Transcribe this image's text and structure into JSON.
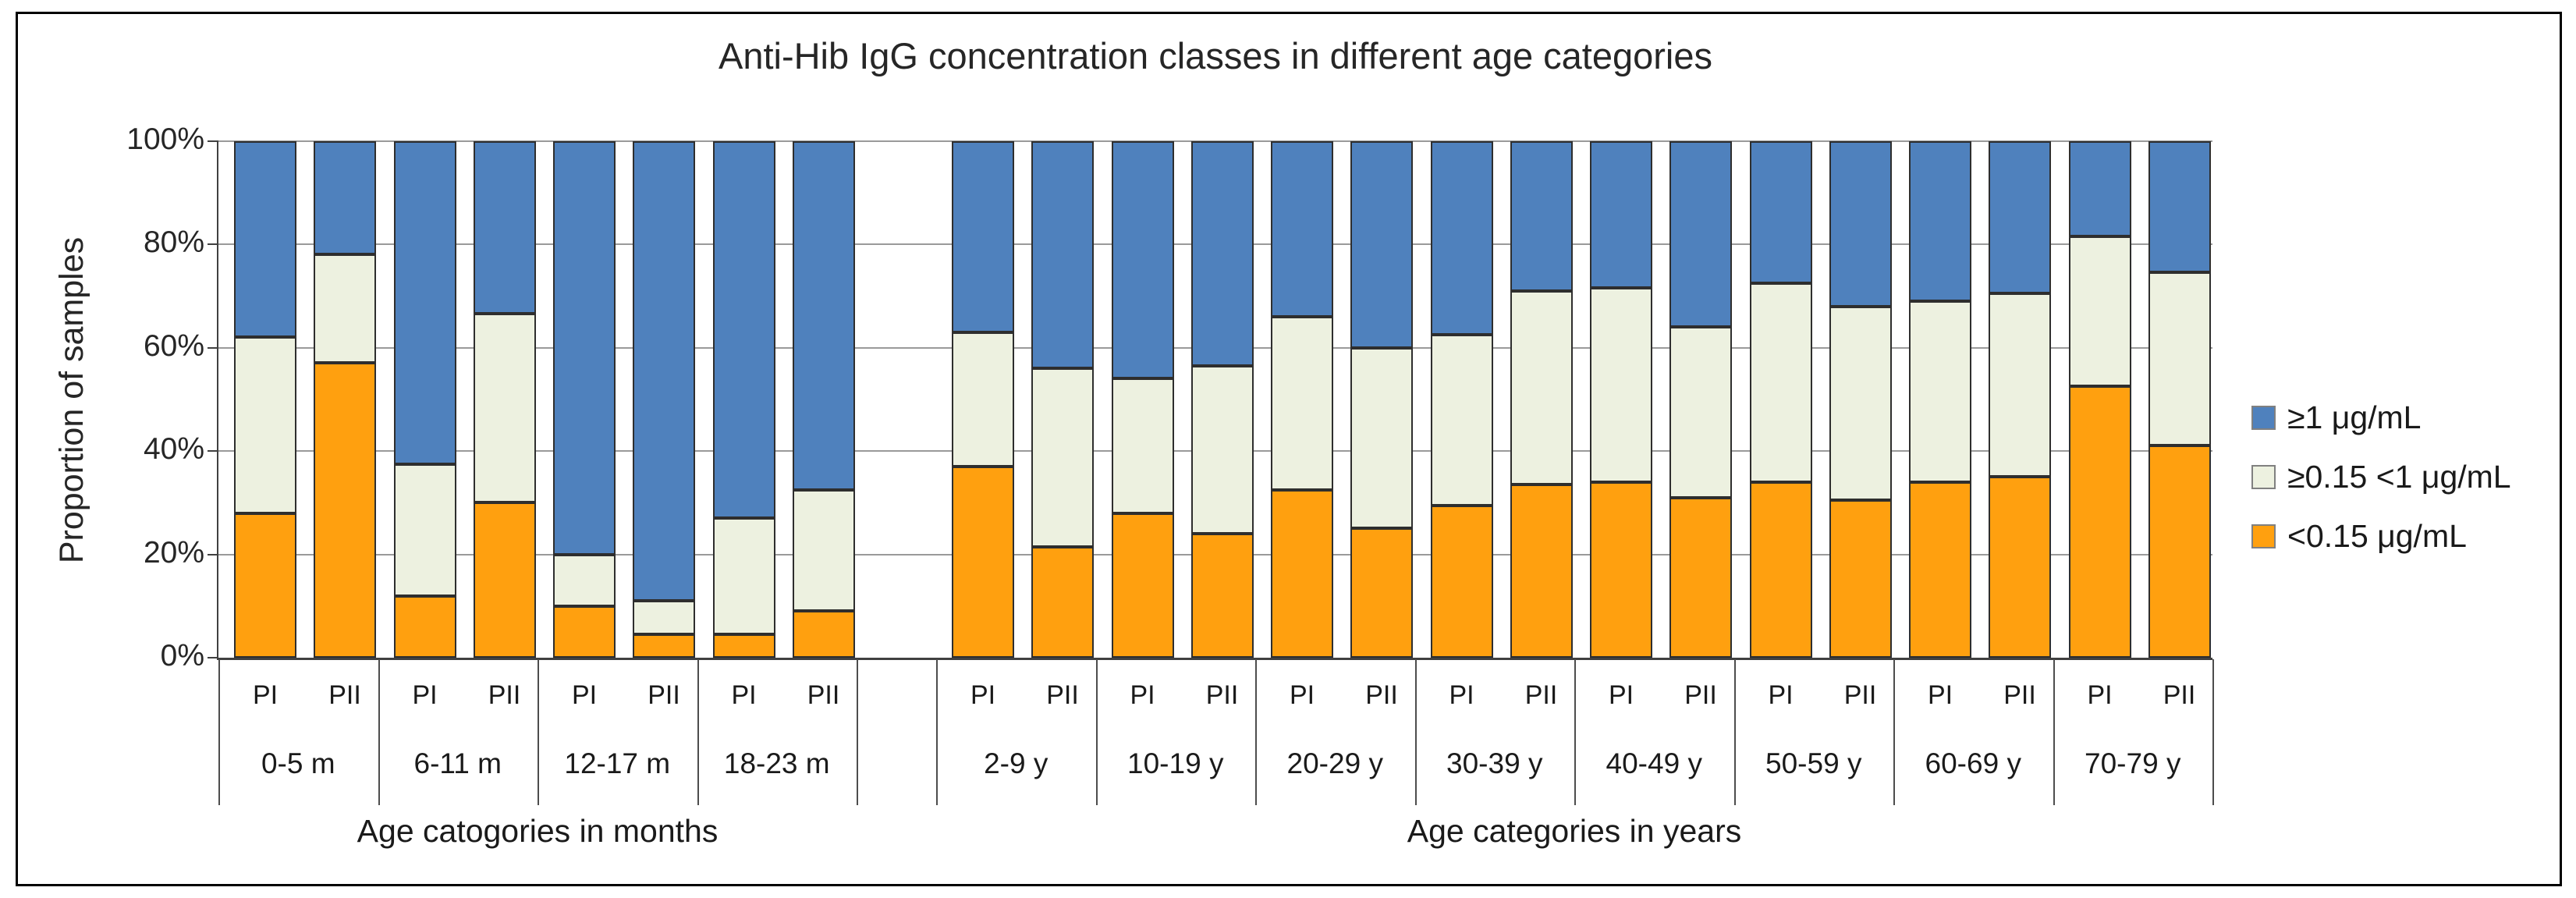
{
  "title": "Anti-Hib IgG concentration classes in different age categories",
  "y_axis": {
    "title": "Proportion of samples",
    "ticks": [
      {
        "value": 0,
        "label": "0%"
      },
      {
        "value": 20,
        "label": "20%"
      },
      {
        "value": 40,
        "label": "40%"
      },
      {
        "value": 60,
        "label": "60%"
      },
      {
        "value": 80,
        "label": "80%"
      },
      {
        "value": 100,
        "label": "100%"
      }
    ]
  },
  "legend": [
    {
      "label": "≥1 μg/mL",
      "color": "#4F81BD"
    },
    {
      "label": "≥0.15 <1 μg/mL",
      "color": "#EDF1E0"
    },
    {
      "label": "<0.15 μg/mL",
      "color": "#FFA00F"
    }
  ],
  "chart_data": {
    "type": "bar",
    "stacked": true,
    "unit": "percent of samples",
    "ylabel": "Proportion of samples",
    "ylim": [
      0,
      100
    ],
    "yticks": [
      0,
      20,
      40,
      60,
      80,
      100
    ],
    "grid": true,
    "legend_position": "right",
    "series_order_bottom_to_top": [
      "<0.15 μg/mL",
      "≥0.15 <1 μg/mL",
      "≥1 μg/mL"
    ],
    "series_colors": {
      "<0.15 μg/mL": "#FFA00F",
      "≥0.15 <1 μg/mL": "#EDF1E0",
      "≥1 μg/mL": "#4F81BD"
    },
    "groups": [
      {
        "axis_title": "Age catogories in months",
        "categories": [
          {
            "label": "0-5  m",
            "bars": [
              {
                "label": "PI",
                "values": [
                  28,
                  34,
                  38
                ]
              },
              {
                "label": "PII",
                "values": [
                  57,
                  21,
                  22
                ]
              }
            ]
          },
          {
            "label": "6-11  m",
            "bars": [
              {
                "label": "PI",
                "values": [
                  12,
                  25.5,
                  62.5
                ]
              },
              {
                "label": "PII",
                "values": [
                  30,
                  36.5,
                  33.5
                ]
              }
            ]
          },
          {
            "label": "12-17  m",
            "bars": [
              {
                "label": "PI",
                "values": [
                  10,
                  10,
                  80
                ]
              },
              {
                "label": "PII",
                "values": [
                  4.5,
                  6.5,
                  89
                ]
              }
            ]
          },
          {
            "label": "18-23  m",
            "bars": [
              {
                "label": "PI",
                "values": [
                  4.5,
                  22.5,
                  73
                ]
              },
              {
                "label": "PII",
                "values": [
                  9,
                  23.5,
                  67.5
                ]
              }
            ]
          }
        ]
      },
      {
        "axis_title": "Age categories in years",
        "categories": [
          {
            "label": "2-9 y",
            "bars": [
              {
                "label": "PI",
                "values": [
                  37,
                  26,
                  37
                ]
              },
              {
                "label": "PII",
                "values": [
                  21.5,
                  34.5,
                  44
                ]
              }
            ]
          },
          {
            "label": "10-19 y",
            "bars": [
              {
                "label": "PI",
                "values": [
                  28,
                  26,
                  46
                ]
              },
              {
                "label": "PII",
                "values": [
                  24,
                  32.5,
                  43.5
                ]
              }
            ]
          },
          {
            "label": "20-29 y",
            "bars": [
              {
                "label": "PI",
                "values": [
                  32.5,
                  33.5,
                  34
                ]
              },
              {
                "label": "PII",
                "values": [
                  25,
                  35,
                  40
                ]
              }
            ]
          },
          {
            "label": "30-39 y",
            "bars": [
              {
                "label": "PI",
                "values": [
                  29.5,
                  33,
                  37.5
                ]
              },
              {
                "label": "PII",
                "values": [
                  33.5,
                  37.5,
                  29
                ]
              }
            ]
          },
          {
            "label": "40-49 y",
            "bars": [
              {
                "label": "PI",
                "values": [
                  34,
                  37.5,
                  28.5
                ]
              },
              {
                "label": "PII",
                "values": [
                  31,
                  33,
                  36
                ]
              }
            ]
          },
          {
            "label": "50-59 y",
            "bars": [
              {
                "label": "PI",
                "values": [
                  34,
                  38.5,
                  27.5
                ]
              },
              {
                "label": "PII",
                "values": [
                  30.5,
                  37.5,
                  32
                ]
              }
            ]
          },
          {
            "label": "60-69 y",
            "bars": [
              {
                "label": "PI",
                "values": [
                  34,
                  35,
                  31
                ]
              },
              {
                "label": "PII",
                "values": [
                  35,
                  35.5,
                  29.5
                ]
              }
            ]
          },
          {
            "label": "70-79 y",
            "bars": [
              {
                "label": "PI",
                "values": [
                  52.5,
                  29,
                  18.5
                ]
              },
              {
                "label": "PII",
                "values": [
                  41,
                  33.5,
                  25.5
                ]
              }
            ]
          }
        ]
      }
    ]
  }
}
